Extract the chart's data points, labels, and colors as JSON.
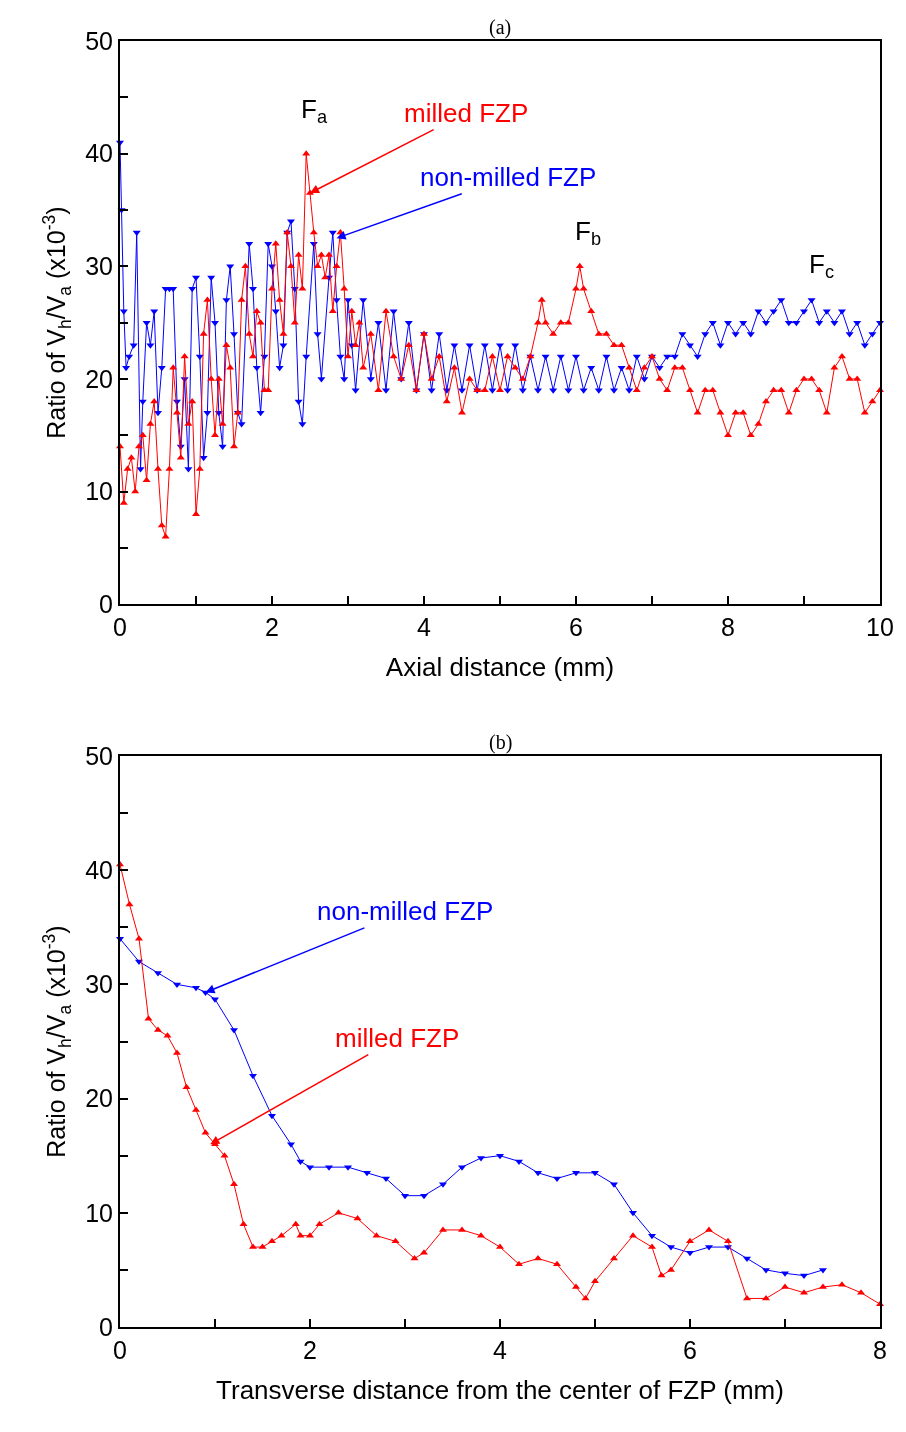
{
  "chart_data": [
    {
      "type": "line",
      "title": "(a)",
      "xlabel": "Axial distance (mm)",
      "ylabel": "Ratio of V$_{h}$/V$_{a}$ (x10$^{-3}$)",
      "xlim": [
        0,
        10
      ],
      "xticks": [
        0,
        {
          "value": 1,
          "label": null
        },
        2,
        {
          "value": 3,
          "label": null
        },
        4,
        {
          "value": 5,
          "label": null
        },
        6,
        {
          "value": 7,
          "label": null
        },
        8,
        {
          "value": 9,
          "label": null
        },
        10
      ],
      "ylim": [
        0,
        50
      ],
      "yticks": [
        0,
        {
          "value": 5,
          "label": null
        },
        10,
        {
          "value": 15,
          "label": null
        },
        20,
        {
          "value": 25,
          "label": null
        },
        30,
        {
          "value": 35,
          "label": null
        },
        40,
        {
          "value": 45,
          "label": null
        },
        50
      ],
      "line_style": "solid",
      "series": [
        {
          "color": "#0000ff",
          "marker": "triangle-down",
          "x": [
            0,
            0.02,
            0.05,
            0.08,
            0.12,
            0.18,
            0.22,
            0.27,
            0.3,
            0.35,
            0.4,
            0.45,
            0.5,
            0.55,
            0.6,
            0.65,
            0.7,
            0.75,
            0.8,
            0.85,
            0.9,
            0.95,
            1.0,
            1.05,
            1.1,
            1.15,
            1.2,
            1.25,
            1.3,
            1.35,
            1.4,
            1.45,
            1.5,
            1.55,
            1.6,
            1.7,
            1.75,
            1.8,
            1.85,
            1.9,
            1.95,
            2.0,
            2.05,
            2.1,
            2.15,
            2.2,
            2.25,
            2.3,
            2.35,
            2.4,
            2.45,
            2.55,
            2.6,
            2.65,
            2.75,
            2.8,
            2.85,
            2.9,
            2.95,
            3.0,
            3.05,
            3.1,
            3.2,
            3.3,
            3.4,
            3.5,
            3.6,
            3.7,
            3.8,
            3.9,
            4.0,
            4.1,
            4.2,
            4.3,
            4.4,
            4.5,
            4.6,
            4.7,
            4.8,
            4.9,
            5.0,
            5.1,
            5.2,
            5.3,
            5.4,
            5.5,
            5.6,
            5.7,
            5.8,
            5.9,
            6.0,
            6.1,
            6.2,
            6.3,
            6.4,
            6.5,
            6.6,
            6.7,
            6.8,
            6.9,
            7.0,
            7.1,
            7.2,
            7.3,
            7.4,
            7.5,
            7.6,
            7.7,
            7.8,
            7.9,
            8.0,
            8.1,
            8.2,
            8.3,
            8.4,
            8.5,
            8.6,
            8.7,
            8.8,
            8.9,
            9.0,
            9.1,
            9.2,
            9.3,
            9.4,
            9.5,
            9.6,
            9.7,
            9.8,
            9.9,
            10.0
          ],
          "values": [
            41,
            35,
            26,
            21,
            22,
            23,
            33,
            12,
            18,
            25,
            23,
            26,
            17,
            21,
            28,
            28,
            28,
            18,
            14,
            20,
            12,
            28,
            29,
            22,
            13,
            17,
            29,
            25,
            17,
            14,
            27,
            30,
            24,
            17,
            16,
            32,
            28,
            21,
            17,
            22,
            32,
            30,
            26,
            21,
            23,
            33,
            34,
            28,
            18,
            16,
            22,
            32,
            24,
            20,
            29,
            33,
            27,
            22,
            20,
            27,
            23,
            19,
            27,
            20,
            25,
            19,
            26,
            20,
            25,
            19,
            24,
            19,
            24,
            19,
            23,
            19,
            23,
            19,
            23,
            19,
            23,
            19,
            23,
            19,
            22,
            19,
            22,
            19,
            22,
            19,
            22,
            19,
            21,
            19,
            22,
            19,
            21,
            19,
            22,
            20,
            22,
            21,
            22,
            22,
            24,
            23,
            22,
            24,
            25,
            23,
            25,
            24,
            25,
            24,
            26,
            25,
            26,
            27,
            25,
            25,
            26,
            27,
            25,
            26,
            25,
            26,
            24,
            25,
            23,
            24,
            25
          ]
        },
        {
          "color": "#ff0000",
          "marker": "triangle",
          "x": [
            0,
            0.05,
            0.1,
            0.15,
            0.2,
            0.25,
            0.3,
            0.35,
            0.4,
            0.45,
            0.5,
            0.55,
            0.6,
            0.65,
            0.7,
            0.75,
            0.8,
            0.85,
            0.9,
            0.95,
            1.0,
            1.05,
            1.1,
            1.15,
            1.2,
            1.25,
            1.3,
            1.35,
            1.4,
            1.45,
            1.5,
            1.55,
            1.6,
            1.65,
            1.7,
            1.75,
            1.8,
            1.85,
            1.9,
            1.95,
            2.0,
            2.05,
            2.1,
            2.15,
            2.2,
            2.25,
            2.3,
            2.35,
            2.4,
            2.45,
            2.5,
            2.55,
            2.6,
            2.65,
            2.7,
            2.75,
            2.8,
            2.85,
            2.9,
            2.95,
            3.0,
            3.05,
            3.1,
            3.15,
            3.2,
            3.3,
            3.4,
            3.5,
            3.6,
            3.7,
            3.8,
            3.9,
            4.0,
            4.1,
            4.2,
            4.3,
            4.4,
            4.5,
            4.6,
            4.7,
            4.8,
            4.9,
            5.0,
            5.1,
            5.2,
            5.3,
            5.4,
            5.5,
            5.55,
            5.6,
            5.7,
            5.8,
            5.9,
            6.0,
            6.05,
            6.1,
            6.2,
            6.3,
            6.4,
            6.5,
            6.6,
            6.7,
            6.8,
            6.9,
            7.0,
            7.1,
            7.2,
            7.3,
            7.4,
            7.5,
            7.6,
            7.7,
            7.8,
            7.9,
            8.0,
            8.1,
            8.2,
            8.3,
            8.4,
            8.5,
            8.6,
            8.7,
            8.8,
            8.9,
            9.0,
            9.1,
            9.2,
            9.3,
            9.4,
            9.5,
            9.6,
            9.7,
            9.8,
            9.9,
            10.0
          ],
          "values": [
            14,
            9,
            12,
            13,
            10,
            14,
            15,
            11,
            16,
            18,
            12,
            7,
            6,
            12,
            21,
            17,
            13,
            22,
            16,
            18,
            8,
            12,
            24,
            27,
            20,
            15,
            20,
            16,
            23,
            21,
            14,
            17,
            27,
            30,
            24,
            22,
            26,
            25,
            19,
            19,
            28,
            32,
            27,
            24,
            33,
            30,
            25,
            31,
            28,
            40,
            36.5,
            33,
            30,
            31,
            29,
            31,
            26,
            30,
            33,
            28,
            22,
            26,
            23,
            25,
            21,
            24,
            19,
            26,
            22,
            20,
            23,
            19,
            24,
            20,
            22,
            18,
            21,
            17,
            20,
            19,
            19,
            22,
            19,
            22,
            21,
            20,
            22,
            25,
            27,
            25,
            24,
            25,
            25,
            28,
            30,
            28,
            26,
            24,
            24,
            23,
            23,
            21,
            19,
            21,
            22,
            20,
            19,
            21,
            21,
            19,
            17,
            19,
            19,
            17,
            15,
            17,
            17,
            15,
            16,
            18,
            19,
            19,
            17,
            19,
            20,
            20,
            19,
            17,
            21,
            22,
            20,
            20,
            17,
            18,
            19
          ]
        }
      ],
      "annotations": [
        {
          "text": "F$_{a}$",
          "x": 2.45,
          "y": 40
        },
        {
          "text": "milled FZP",
          "x": 2.5,
          "y": 36.5
        },
        {
          "text": "non-milled FZP",
          "x": 2.85,
          "y": 32.5
        },
        {
          "text": "F$_{b}$",
          "x": 6.05,
          "y": 30
        },
        {
          "text": "F$_{c}$",
          "x": 9.1,
          "y": 27
        }
      ]
    },
    {
      "type": "line",
      "title": "(b)",
      "xlabel": "Transverse distance from the center of FZP (mm)",
      "ylabel": "Ratio of V$_{h}$/V$_{a}$ (x10$^{-3}$)",
      "xlim": [
        0,
        8
      ],
      "xticks": [
        0,
        {
          "value": 1,
          "label": null
        },
        2,
        {
          "value": 3,
          "label": null
        },
        4,
        {
          "value": 5,
          "label": null
        },
        6,
        {
          "value": 7,
          "label": null
        },
        8
      ],
      "ylim": [
        0,
        50
      ],
      "yticks": [
        0,
        {
          "value": 5,
          "label": null
        },
        10,
        {
          "value": 15,
          "label": null
        },
        20,
        {
          "value": 25,
          "label": null
        },
        30,
        {
          "value": 35,
          "label": null
        },
        40,
        {
          "value": 45,
          "label": null
        },
        50
      ],
      "line_style": "solid",
      "series": [
        {
          "color": "#0000ff",
          "marker": "triangle-down",
          "x": [
            0,
            0.2,
            0.4,
            0.6,
            0.8,
            0.9,
            1.0,
            1.2,
            1.4,
            1.6,
            1.8,
            1.9,
            2.0,
            2.2,
            2.4,
            2.6,
            2.8,
            3.0,
            3.2,
            3.4,
            3.6,
            3.8,
            4.0,
            4.2,
            4.4,
            4.6,
            4.8,
            5.0,
            5.2,
            5.4,
            5.6,
            5.8,
            6.0,
            6.2,
            6.4,
            6.6,
            6.8,
            7.0,
            7.2,
            7.4
          ],
          "values": [
            34,
            32,
            31,
            30,
            29.7,
            29.3,
            28.7,
            26,
            22,
            18.5,
            16,
            14.5,
            14,
            14,
            14,
            13.5,
            13,
            11.5,
            11.5,
            12.5,
            14,
            14.8,
            15,
            14.5,
            13.5,
            13,
            13.5,
            13.5,
            12.5,
            10,
            8,
            7,
            6.5,
            7,
            7,
            6,
            5,
            4.7,
            4.5,
            5
          ]
        },
        {
          "color": "#ff0000",
          "marker": "triangle",
          "x": [
            0,
            0.1,
            0.2,
            0.3,
            0.4,
            0.5,
            0.6,
            0.7,
            0.8,
            0.9,
            1.0,
            1.1,
            1.2,
            1.3,
            1.4,
            1.5,
            1.6,
            1.7,
            1.85,
            1.9,
            2.0,
            2.1,
            2.3,
            2.5,
            2.7,
            2.9,
            3.1,
            3.2,
            3.4,
            3.6,
            3.8,
            4.0,
            4.2,
            4.4,
            4.6,
            4.8,
            4.9,
            5.0,
            5.2,
            5.4,
            5.6,
            5.7,
            5.8,
            6.0,
            6.2,
            6.4,
            6.6,
            6.8,
            7.0,
            7.2,
            7.4,
            7.6,
            7.8,
            8.0
          ],
          "values": [
            40.5,
            37,
            34,
            27,
            26,
            25.5,
            24,
            21,
            19,
            17,
            16,
            15,
            12.5,
            9,
            7,
            7,
            7.5,
            8,
            9,
            8,
            8,
            9,
            10,
            9.5,
            8,
            7.5,
            6,
            6.5,
            8.5,
            8.5,
            8,
            7,
            5.5,
            6,
            5.5,
            3.5,
            2.5,
            4,
            6,
            8,
            7,
            4.5,
            5,
            7.5,
            8.5,
            7.5,
            2.5,
            2.5,
            3.5,
            3,
            3.5,
            3.7,
            3,
            2
          ]
        }
      ],
      "annotations": [
        {
          "text": "non-milled FZP",
          "x": 0.9,
          "y": 29.3
        },
        {
          "text": "milled FZP",
          "x": 0.95,
          "y": 16
        }
      ]
    }
  ]
}
